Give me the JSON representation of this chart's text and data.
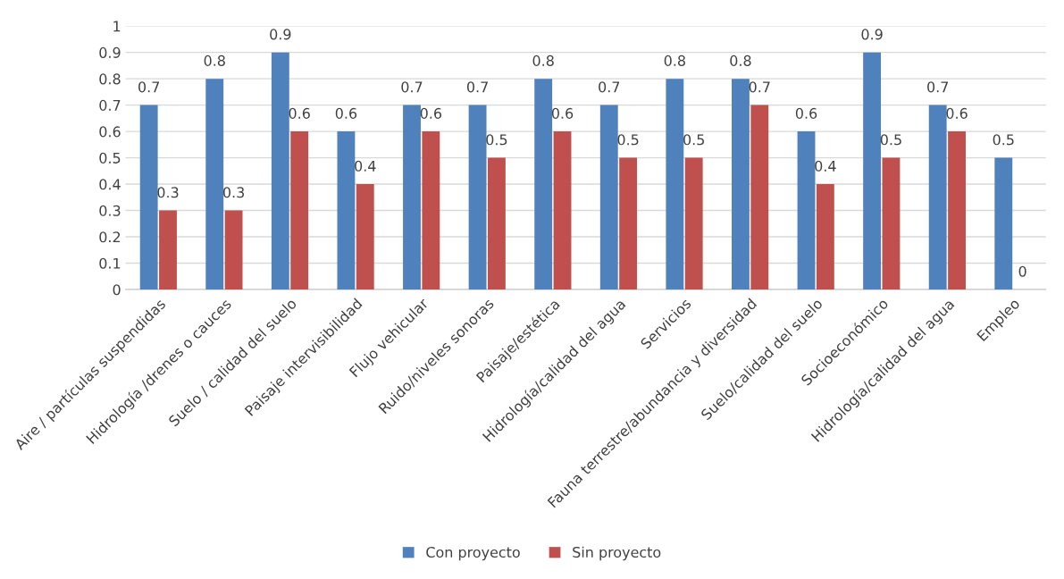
{
  "chart_data": {
    "type": "bar",
    "categories": [
      "Aire / partículas suspendidas",
      "Hidrología /drenes o cauces",
      "Suelo / calidad del suelo",
      "Paisaje intervisibilidad",
      "Flujo vehicular",
      "Ruido/niveles sonoras",
      "Paisaje/estética",
      "Hidrología/calidad del agua",
      "Servicios",
      "Fauna terrestre/abundancia y diversidad",
      "Suelo/calidad del suelo",
      "Socioeconómico",
      "Hidrología/calidad del agua",
      "Empleo"
    ],
    "series": [
      {
        "name": "Con proyecto",
        "color": "#4f81bd",
        "values": [
          0.7,
          0.8,
          0.9,
          0.6,
          0.7,
          0.7,
          0.8,
          0.7,
          0.8,
          0.8,
          0.6,
          0.9,
          0.7,
          0.5
        ]
      },
      {
        "name": "Sin proyecto",
        "color": "#c0504d",
        "values": [
          0.3,
          0.3,
          0.6,
          0.4,
          0.6,
          0.5,
          0.6,
          0.5,
          0.5,
          0.7,
          0.4,
          0.5,
          0.6,
          0
        ]
      }
    ],
    "ylim": [
      0,
      1
    ],
    "yticks": [
      0,
      0.1,
      0.2,
      0.3,
      0.4,
      0.5,
      0.6,
      0.7,
      0.8,
      0.9,
      1
    ],
    "grid": "y",
    "legend": "bottom",
    "data_labels": true
  }
}
